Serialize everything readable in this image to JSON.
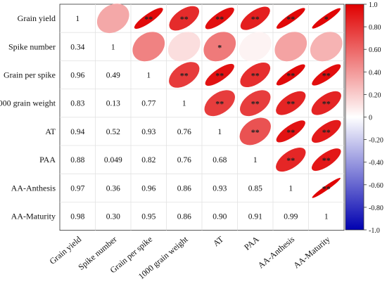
{
  "chart_data": {
    "type": "heatmap",
    "subtype": "correlation-ellipse-matrix",
    "variables": [
      "Grain yield",
      "Spike number",
      "Grain per spike",
      "1000 grain weight",
      "AT",
      "PAA",
      "AA-Anthesis",
      "AA-Maturity"
    ],
    "matrix": [
      [
        1,
        0.34,
        0.96,
        0.83,
        0.94,
        0.88,
        0.97,
        0.98
      ],
      [
        0.34,
        1,
        0.49,
        0.13,
        0.52,
        0.049,
        0.36,
        0.3
      ],
      [
        0.96,
        0.49,
        1,
        0.77,
        0.93,
        0.82,
        0.96,
        0.95
      ],
      [
        0.83,
        0.13,
        0.77,
        1,
        0.76,
        0.76,
        0.86,
        0.86
      ],
      [
        0.94,
        0.52,
        0.93,
        0.76,
        1,
        0.68,
        0.93,
        0.9
      ],
      [
        0.88,
        0.049,
        0.82,
        0.76,
        0.68,
        1,
        0.85,
        0.91
      ],
      [
        0.97,
        0.36,
        0.96,
        0.86,
        0.93,
        0.85,
        1,
        0.99
      ],
      [
        0.98,
        0.3,
        0.95,
        0.86,
        0.9,
        0.91,
        0.99,
        1
      ]
    ],
    "lower_labels": [
      [
        "1"
      ],
      [
        "0.34",
        "1"
      ],
      [
        "0.96",
        "0.49",
        "1"
      ],
      [
        "0.83",
        "0.13",
        "0.77",
        "1"
      ],
      [
        "0.94",
        "0.52",
        "0.93",
        "0.76",
        "1"
      ],
      [
        "0.88",
        "0.049",
        "0.82",
        "0.76",
        "0.68",
        "1"
      ],
      [
        "0.97",
        "0.36",
        "0.96",
        "0.86",
        "0.93",
        "0.85",
        "1"
      ],
      [
        "0.98",
        "0.30",
        "0.95",
        "0.86",
        "0.90",
        "0.91",
        "0.99",
        "1"
      ]
    ],
    "significance": [
      [
        "",
        "",
        "**",
        "**",
        "**",
        "**",
        "**",
        "*"
      ],
      [
        "",
        "",
        "",
        "",
        "*",
        "",
        "",
        ""
      ],
      [
        "",
        "",
        "",
        "**",
        "**",
        "**",
        "**",
        "**"
      ],
      [
        "",
        "",
        "",
        "",
        "**",
        "**",
        "**",
        "**"
      ],
      [
        "",
        "",
        "",
        "",
        "",
        "**",
        "**",
        "**"
      ],
      [
        "",
        "",
        "",
        "",
        "",
        "",
        "**",
        "**"
      ],
      [
        "",
        "",
        "",
        "",
        "",
        "",
        "",
        "**"
      ],
      [
        "",
        "",
        "",
        "",
        "",
        "",
        "",
        ""
      ]
    ],
    "colorbar": {
      "range": [
        -1,
        1
      ],
      "ticks": [
        "1.0",
        "0.80",
        "0.60",
        "0.40",
        "0.20",
        "0",
        "-0.20",
        "-0.40",
        "-0.60",
        "-0.80",
        "-1.0"
      ],
      "colors": {
        "negative": "#0000b0",
        "zero": "#ffffff",
        "positive": "#e00000"
      }
    },
    "grid": true
  }
}
